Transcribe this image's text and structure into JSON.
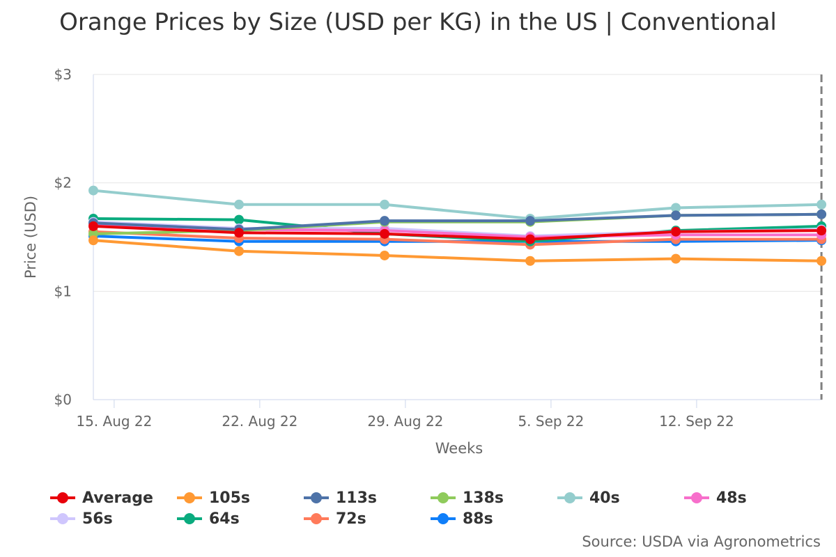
{
  "title": "Orange Prices by Size (USD per KG) in the US | Conventional",
  "source": "Source: USDA via Agronometrics",
  "chart_data": {
    "type": "line",
    "title": "Orange Prices by Size (USD per KG) in the US | Conventional",
    "xlabel": "Weeks",
    "ylabel": "Price (USD)",
    "x_tick_labels": [
      "15. Aug 22",
      "22. Aug 22",
      "29. Aug 22",
      "5. Sep 22",
      "12. Sep 22"
    ],
    "y_tick_labels": [
      "$0",
      "$1",
      "$2",
      "$3"
    ],
    "y_ticks": [
      0,
      1,
      2,
      3
    ],
    "ylim": [
      0,
      3
    ],
    "x": [
      "2022-08-14",
      "2022-08-21",
      "2022-08-28",
      "2022-09-04",
      "2022-09-11",
      "2022-09-18"
    ],
    "grid": true,
    "legend_position": "bottom",
    "series": [
      {
        "name": "Average",
        "color": "#e8000b",
        "values": [
          1.6,
          1.54,
          1.53,
          1.48,
          1.55,
          1.56
        ]
      },
      {
        "name": "105s",
        "color": "#ff9933",
        "values": [
          1.47,
          1.37,
          1.33,
          1.28,
          1.3,
          1.28
        ]
      },
      {
        "name": "113s",
        "color": "#4e73a8",
        "values": [
          1.63,
          1.57,
          1.65,
          1.65,
          1.7,
          1.71
        ]
      },
      {
        "name": "138s",
        "color": "#8fcb5c",
        "values": [
          1.53,
          1.56,
          1.64,
          1.64,
          1.7,
          1.71
        ]
      },
      {
        "name": "40s",
        "color": "#94cdcd",
        "values": [
          1.93,
          1.8,
          1.8,
          1.67,
          1.77,
          1.8
        ]
      },
      {
        "name": "48s",
        "color": "#f76fcb",
        "values": [
          1.62,
          1.57,
          1.56,
          1.5,
          1.52,
          1.52
        ]
      },
      {
        "name": "56s",
        "color": "#cfc6fd",
        "values": [
          1.64,
          1.58,
          1.58,
          1.51,
          1.55,
          1.57
        ]
      },
      {
        "name": "64s",
        "color": "#0aab7e",
        "values": [
          1.67,
          1.66,
          1.53,
          1.46,
          1.56,
          1.6
        ]
      },
      {
        "name": "72s",
        "color": "#ff7a5a",
        "values": [
          1.55,
          1.49,
          1.48,
          1.43,
          1.48,
          1.48
        ]
      },
      {
        "name": "88s",
        "color": "#0f7ef9",
        "values": [
          1.51,
          1.46,
          1.46,
          1.46,
          1.46,
          1.47
        ]
      }
    ]
  }
}
